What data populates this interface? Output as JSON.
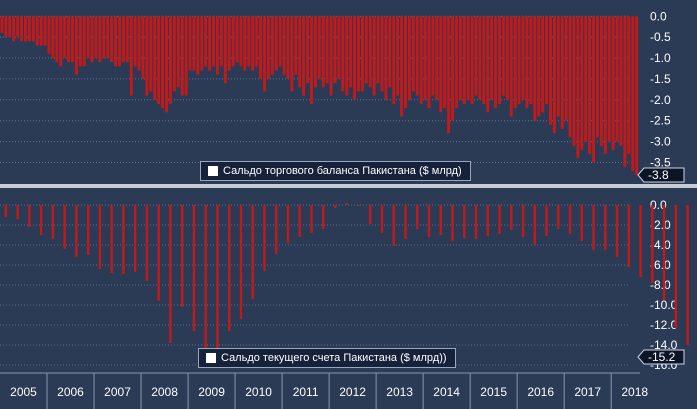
{
  "chart_data": [
    {
      "type": "bar",
      "title": "",
      "legend": "Сальдо торгового баланса Пакистана ($ млрд)",
      "legend_position": "bottom-center",
      "ylim": [
        -3.8,
        0.15
      ],
      "yticks": [
        "0.0",
        "-0.5",
        "-1.0",
        "-1.5",
        "-2.0",
        "-2.5",
        "-3.0",
        "-3.5"
      ],
      "last_value_label": "-3.8",
      "frequency": "monthly",
      "start": "2005-01",
      "values": [
        -0.4,
        -0.5,
        -0.5,
        -0.6,
        -0.5,
        -0.6,
        -0.6,
        -0.6,
        -0.6,
        -0.7,
        -0.7,
        -0.7,
        -0.9,
        -1.0,
        -1.1,
        -1.2,
        -1.0,
        -1.1,
        -1.1,
        -1.4,
        -1.2,
        -1.2,
        -1.0,
        -1.1,
        -1.0,
        -1.1,
        -1.0,
        -1.0,
        -1.1,
        -1.2,
        -1.2,
        -1.1,
        -1.1,
        -1.9,
        -1.2,
        -1.3,
        -1.5,
        -1.9,
        -1.8,
        -2.0,
        -2.1,
        -2.2,
        -2.3,
        -2.1,
        -1.8,
        -1.7,
        -1.9,
        -1.9,
        -1.3,
        -1.3,
        -1.4,
        -1.3,
        -1.2,
        -1.3,
        -1.2,
        -1.4,
        -1.2,
        -1.6,
        -1.3,
        -1.2,
        -1.1,
        -1.2,
        -1.3,
        -1.2,
        -1.3,
        -1.2,
        -1.5,
        -1.8,
        -1.5,
        -1.4,
        -1.3,
        -1.2,
        -1.4,
        -1.5,
        -1.8,
        -1.4,
        -1.7,
        -1.9,
        -1.6,
        -2.1,
        -1.7,
        -1.5,
        -1.7,
        -1.6,
        -1.9,
        -1.6,
        -1.5,
        -1.8,
        -1.9,
        -1.7,
        -2.0,
        -1.8,
        -1.8,
        -1.6,
        -1.7,
        -1.9,
        -1.6,
        -1.8,
        -2.0,
        -1.7,
        -2.1,
        -1.9,
        -2.4,
        -2.2,
        -2.0,
        -1.8,
        -1.9,
        -2.1,
        -2.0,
        -2.2,
        -1.9,
        -2.0,
        -2.3,
        -2.2,
        -2.8,
        -2.5,
        -2.2,
        -2.0,
        -2.1,
        -2.0,
        -2.1,
        -1.9,
        -2.0,
        -2.1,
        -2.3,
        -2.0,
        -2.2,
        -2.1,
        -1.9,
        -2.0,
        -2.4,
        -2.2,
        -2.1,
        -2.0,
        -2.2,
        -2.1,
        -2.5,
        -2.4,
        -2.3,
        -2.1,
        -2.6,
        -2.8,
        -2.4,
        -2.7,
        -2.5,
        -2.9,
        -3.1,
        -3.4,
        -3.2,
        -3.0,
        -3.3,
        -3.5,
        -2.9,
        -3.1,
        -3.3,
        -3.0,
        -3.2,
        -3.0,
        -3.1,
        -3.6,
        -3.3,
        -3.7,
        -3.8
      ]
    },
    {
      "type": "bar",
      "title": "",
      "legend": "Сальдо текущего счета Пакистана ($ млрд))",
      "legend_position": "bottom-center",
      "ylim": [
        -15.9,
        0.9
      ],
      "yticks": [
        "0.0",
        "-2.0",
        "-4.0",
        "-6.0",
        "-8.0",
        "-10.0",
        "-12.0",
        "-14.0",
        "-16.0"
      ],
      "last_value_label": "-15.2",
      "frequency": "quarterly",
      "start": "2005Q1",
      "values": [
        -1.2,
        -1.4,
        -2.2,
        -3.0,
        -3.4,
        -4.4,
        -5.2,
        -5.0,
        -6.4,
        -6.8,
        -6.9,
        -6.7,
        -7.6,
        -9.6,
        -13.8,
        -10.2,
        -12.6,
        -15.3,
        -15.2,
        -12.6,
        -11.4,
        -9.4,
        -6.6,
        -4.9,
        -3.8,
        -3.2,
        -2.8,
        -2.4,
        -0.3,
        0.2,
        -0.1,
        -1.9,
        -2.8,
        -4.1,
        -3.4,
        -2.4,
        -3.2,
        -3.0,
        -3.6,
        -3.3,
        -3.4,
        -3.1,
        -2.9,
        -2.5,
        -3.2,
        -4.0,
        -3.1,
        -2.4,
        -2.9,
        -3.6,
        -4.5,
        -4.5,
        -5.2,
        -6.2,
        -7.2,
        -7.8,
        -9.5,
        -12.3,
        -14.0,
        -15.2
      ]
    }
  ],
  "x_axis_labels": [
    "2005",
    "2006",
    "2007",
    "2008",
    "2009",
    "2010",
    "2011",
    "2012",
    "2013",
    "2014",
    "2015",
    "2016",
    "2017",
    "2018"
  ],
  "colors": {
    "background": "#2b3a55",
    "bar": "#c21a1a",
    "bar_edge": "#e03030",
    "grid": "#5e6e8c",
    "axis_text": "#ffffff",
    "separator": "#c8ccd4",
    "label_bg": "#0c1428",
    "label_border": "#d0d6e2"
  }
}
